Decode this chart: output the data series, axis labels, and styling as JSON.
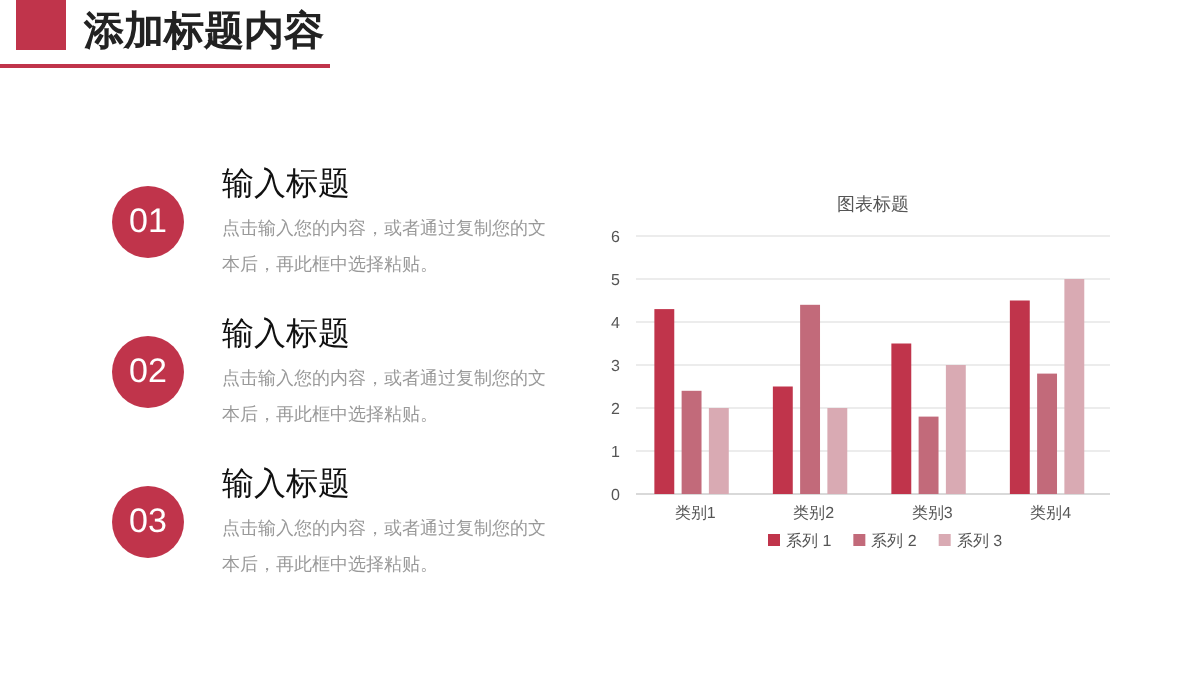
{
  "chart_data": {
    "type": "bar",
    "title": "图表标题",
    "categories": [
      "类别1",
      "类别2",
      "类别3",
      "类别4"
    ],
    "series": [
      {
        "name": "系列 1",
        "color": "#c0344b",
        "values": [
          4.3,
          2.5,
          3.5,
          4.5
        ]
      },
      {
        "name": "系列 2",
        "color": "#c26a7a",
        "values": [
          2.4,
          4.4,
          1.8,
          2.8
        ]
      },
      {
        "name": "系列 3",
        "color": "#d9aab3",
        "values": [
          2,
          2,
          3,
          5
        ]
      }
    ],
    "ylim": [
      0,
      6
    ],
    "yticks": [
      0,
      1,
      2,
      3,
      4,
      5,
      6
    ],
    "grid": "y",
    "legend": "bottom",
    "annotations": [
      "添加标题内容",
      "01",
      "输入标题",
      "点击输入您的内容，或者通过复制您的文本后，再此框中选择粘贴。",
      "02",
      "输入标题",
      "点击输入您的内容，或者通过复制您的文本后，再此框中选择粘贴。",
      "03",
      "输入标题",
      "点击输入您的内容，或者通过复制您的文本后，再此框中选择粘贴。"
    ]
  }
}
